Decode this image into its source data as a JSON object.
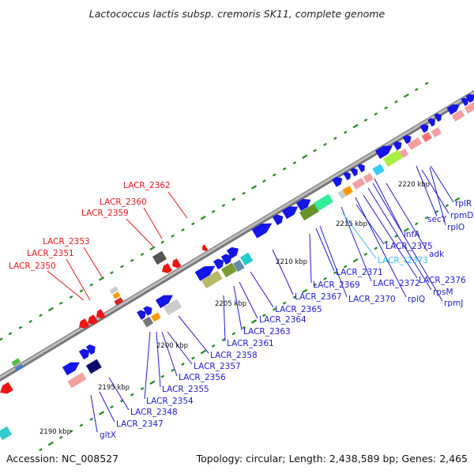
{
  "title": "Lactococcus lactis subsp. cremoris SK11, complete genome",
  "footer": {
    "accession": "Accession: NC_008527",
    "summary": "Topology: circular; Length: 2,438,589 bp; Genes: 2,465"
  },
  "colors": {
    "backbone": "#9a9a9a",
    "reverse_label": "#e8181b",
    "forward_label": "#1d1dcf",
    "trna_label": "#33bbee",
    "forward_gene": "#1515e6",
    "reverse_gene": "#ee1515",
    "tick": "#1e8a1e"
  },
  "ticks": [
    {
      "kbp": 2190,
      "label": "2190 kbp"
    },
    {
      "kbp": 2195,
      "label": "2195 kbp"
    },
    {
      "kbp": 2200,
      "label": "2200 kbp"
    },
    {
      "kbp": 2205,
      "label": "2205 kbp"
    },
    {
      "kbp": 2210,
      "label": "2210 kbp"
    },
    {
      "kbp": 2215,
      "label": "2215 kbp"
    },
    {
      "kbp": 2220,
      "label": "2220 kbp"
    }
  ],
  "reverse_labels": [
    "LACR_2350",
    "LACR_2351",
    "LACR_2353",
    "LACR_2359",
    "LACR_2360",
    "LACR_2362"
  ],
  "forward_labels": [
    "gltX",
    "LACR_2347",
    "LACR_2348",
    "LACR_2354",
    "LACR_2355",
    "LACR_2356",
    "LACR_2357",
    "LACR_2358",
    "LACR_2361",
    "LACR_2363",
    "LACR_2364",
    "LACR_2365",
    "LACR_2367",
    "LACR_2369",
    "LACR_2370",
    "LACR_2371",
    "LACR_2372",
    "rplQ",
    "LACR_2375",
    "infA",
    "adk",
    "LACR_2376",
    "rpsM",
    "rpmJ",
    "secY",
    "rplO",
    "rpmD",
    "rplR"
  ],
  "trna_labels": [
    "LACR_t2373"
  ]
}
